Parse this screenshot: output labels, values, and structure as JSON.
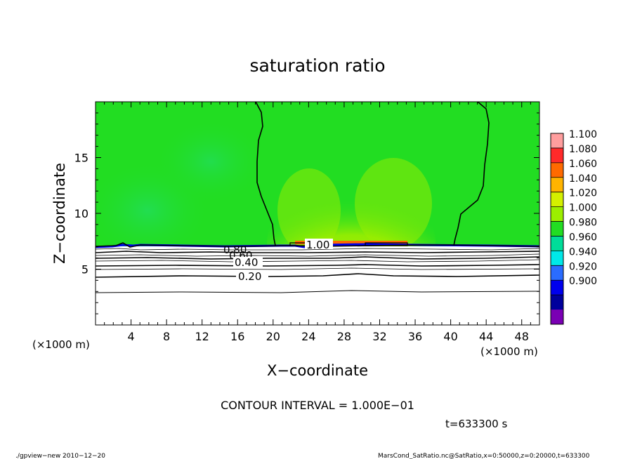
{
  "chart_data": {
    "type": "heatmap",
    "title": "saturation ratio",
    "xlabel": "X−coordinate",
    "ylabel": "Z−coordinate",
    "x_unit": "(×1000 m)",
    "z_unit": "(×1000 m)",
    "xlim": [
      0,
      50
    ],
    "ylim": [
      0,
      20
    ],
    "x_ticks": [
      4,
      8,
      12,
      16,
      20,
      24,
      28,
      32,
      36,
      40,
      44,
      48
    ],
    "y_ticks": [
      5,
      10,
      15
    ],
    "colorbar": {
      "levels": [
        "1.100",
        "1.080",
        "1.060",
        "1.040",
        "1.020",
        "1.000",
        "0.980",
        "0.960",
        "0.940",
        "0.920",
        "0.900"
      ],
      "colors": [
        "#ff9e9e",
        "#ff2a2a",
        "#ff6a00",
        "#ffb400",
        "#d4f000",
        "#9cee00",
        "#22dd22",
        "#00dd99",
        "#00e8e8",
        "#2a6cff",
        "#0000ee",
        "#00009c",
        "#7a00b4"
      ]
    },
    "contour_labels": [
      {
        "text": "1.00",
        "x": 24.5,
        "z": 7.2
      },
      {
        "text": "0.80",
        "x": 16.0,
        "z": 6.6
      },
      {
        "text": "0.60",
        "x": 16.5,
        "z": 6.1
      },
      {
        "text": "0.40",
        "x": 17.0,
        "z": 5.6
      },
      {
        "text": "0.20",
        "x": 17.0,
        "z": 4.3
      }
    ],
    "saturation_line_x_top": [
      18.0,
      43.5
    ],
    "cloud_top_z": 7.0
  },
  "contour_interval": "CONTOUR INTERVAL = 1.000E−01",
  "time_label": "t=633300 s",
  "footer_left": "./gpview−new   2010−12−20",
  "footer_right": "MarsCond_SatRatio.nc@SatRatio,x=0:50000,z=0:20000,t=633300"
}
